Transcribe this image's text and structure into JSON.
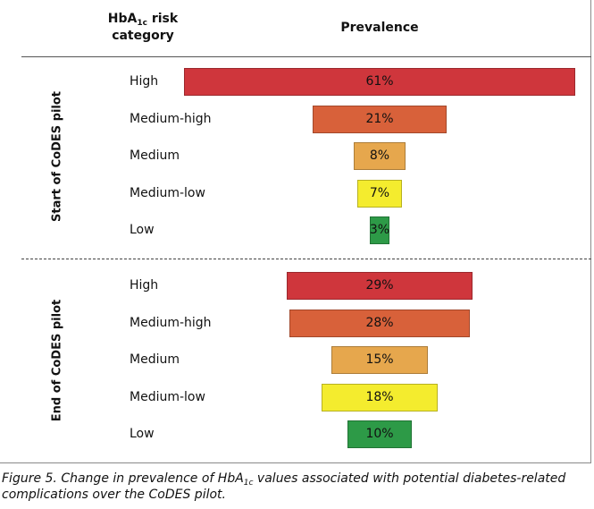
{
  "chart_data": {
    "type": "bar",
    "orientation": "horizontal-centered",
    "header": {
      "category_pre": "HbA",
      "category_sub": "1c",
      "category_post": " risk",
      "category_line2": "category",
      "value": "Prevalence"
    },
    "groups": [
      {
        "name": "Start of CoDES pilot",
        "categories": [
          "High",
          "Medium-high",
          "Medium",
          "Medium-low",
          "Low"
        ],
        "values": [
          61,
          21,
          8,
          7,
          3
        ],
        "labels": [
          "61%",
          "21%",
          "8%",
          "7%",
          "3%"
        ]
      },
      {
        "name": "End of CoDES pilot",
        "categories": [
          "High",
          "Medium-high",
          "Medium",
          "Medium-low",
          "Low"
        ],
        "values": [
          29,
          28,
          15,
          18,
          10
        ],
        "labels": [
          "29%",
          "28%",
          "15%",
          "18%",
          "10%"
        ]
      }
    ],
    "colors": {
      "High": "#cf363c",
      "Medium-high": "#d8613a",
      "Medium": "#e6a74d",
      "Medium-low": "#f4ec2e",
      "Low": "#2d9a47"
    }
  },
  "caption": {
    "pre": "Figure 5. Change in prevalence of HbA",
    "sub": "1c",
    "post": " values associated with potential diabetes-related complications over the CoDES pilot."
  }
}
